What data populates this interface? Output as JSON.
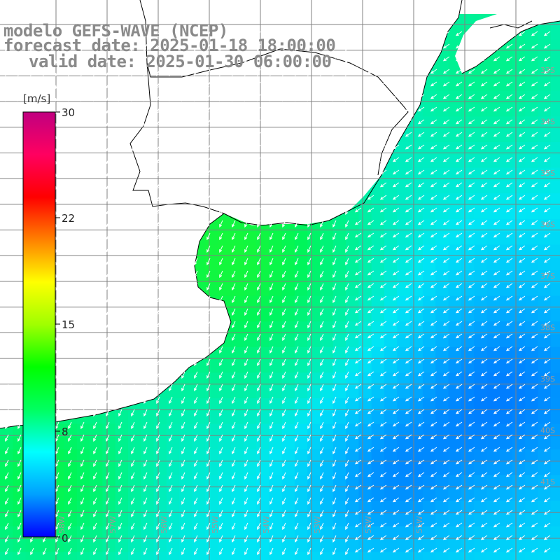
{
  "title": {
    "model": "modelo GEFS-WAVE (NCEP)",
    "forecast": "forecast date: 2025-01-18 18:00:00",
    "valid": "valid date: 2025-01-30 06:00:00"
  },
  "colorbar": {
    "unit": "[m/s]",
    "ticks": [
      "30",
      "22",
      "15",
      "8",
      "0"
    ],
    "range": [
      0,
      30
    ],
    "colors": [
      "#0000ff",
      "#00a0ff",
      "#00ffff",
      "#00ff60",
      "#00ff00",
      "#a0ff00",
      "#ffff00",
      "#ff8000",
      "#ff0000",
      "#ff0060",
      "#c00080"
    ]
  },
  "map": {
    "lat_labels": [
      "33S",
      "34S",
      "35S",
      "36S",
      "37S",
      "38S",
      "39S",
      "40S",
      "41S"
    ],
    "lon_labels": [
      "58W",
      "57W",
      "56W",
      "55W",
      "54W",
      "53W",
      "52W",
      "51W"
    ],
    "colors": {
      "land": "#ffffff",
      "coast": "#000000",
      "grid": "#808080",
      "arrow": "#ffffff",
      "label": "#9a9a9a"
    }
  }
}
